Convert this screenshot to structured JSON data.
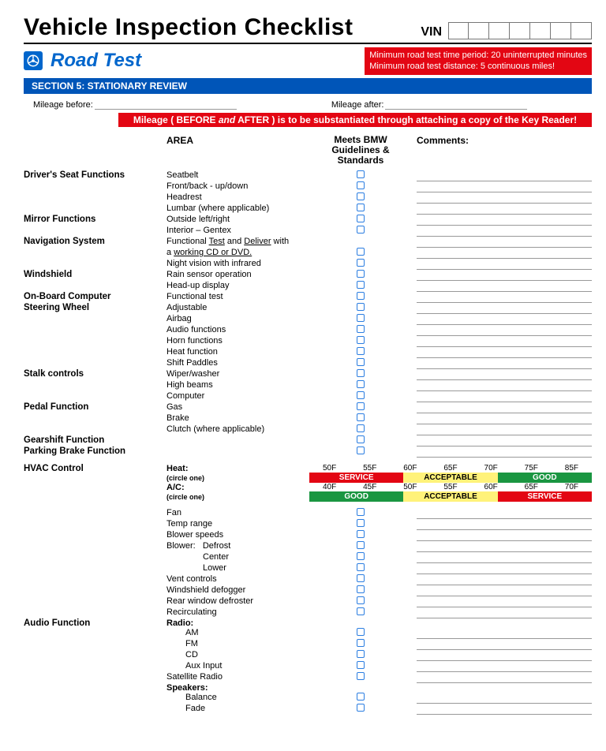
{
  "title": "Vehicle Inspection Checklist",
  "vin_label": "VIN",
  "vin_cells": 7,
  "road_test_title": "Road Test",
  "warning_line1": "Minimum road test time period: 20 uninterrupted minutes",
  "warning_line2": "Minimum road test distance: 5 continuous miles!",
  "section_bar": "SECTION 5: STATIONARY REVIEW",
  "mileage_before_label": "Mileage before:",
  "mileage_after_label": "Mileage after:",
  "red_strip_1": "Mileage ( BEFORE ",
  "red_strip_ital": "and",
  "red_strip_2": " AFTER ) is to be substantiated through attaching a copy of the Key Reader!",
  "col_area": "AREA",
  "col_meets_1": "Meets BMW",
  "col_meets_2": "Guidelines & Standards",
  "col_comments": "Comments:",
  "colors": {
    "blue_bar": "#0055b8",
    "accent_blue": "#0066cc",
    "red": "#e30613",
    "green": "#1a9641",
    "yellow": "#fff27a",
    "checkbox_border": "#2a7de1"
  },
  "groups": [
    {
      "label": "Driver's Seat Functions",
      "rows": [
        {
          "area": "Seatbelt"
        },
        {
          "area": "Front/back - up/down"
        },
        {
          "area": "Headrest"
        },
        {
          "area": "Lumbar (where applicable)"
        }
      ]
    },
    {
      "label": "Mirror Functions",
      "rows": [
        {
          "area": "Outside left/right"
        },
        {
          "area": "Interior – Gentex"
        }
      ]
    },
    {
      "label": "Navigation System",
      "rows": [
        {
          "area_html": "Functional <span class='under'>Test</span> and <span class='under'>Deliver</span> with",
          "nocheck": true
        },
        {
          "area_html": "a <span class='under'>working CD or DVD.</span>"
        },
        {
          "area": "Night vision with infrared"
        }
      ]
    },
    {
      "label": "Windshield",
      "rows": [
        {
          "area": "Rain sensor operation"
        },
        {
          "area": "Head-up display"
        }
      ]
    },
    {
      "label": "On-Board Computer",
      "rows": [
        {
          "area": "Functional test"
        }
      ]
    },
    {
      "label": "Steering Wheel",
      "rows": [
        {
          "area": "Adjustable"
        },
        {
          "area": "Airbag"
        },
        {
          "area": "Audio functions"
        },
        {
          "area": "Horn functions"
        },
        {
          "area": "Heat function"
        },
        {
          "area": "Shift Paddles"
        }
      ]
    },
    {
      "label": "Stalk controls",
      "rows": [
        {
          "area": "Wiper/washer"
        },
        {
          "area": "High beams"
        },
        {
          "area": "Computer"
        }
      ]
    },
    {
      "label": "Pedal Function",
      "rows": [
        {
          "area": "Gas"
        },
        {
          "area": "Brake"
        },
        {
          "area": "Clutch (where applicable)"
        }
      ]
    },
    {
      "label": "Gearshift Function",
      "rows": [
        {
          "area": ""
        }
      ]
    },
    {
      "label": "Parking Brake Function",
      "rows": [
        {
          "area": ""
        }
      ]
    }
  ],
  "hvac": {
    "group_label": "HVAC Control",
    "heat_label": "Heat:",
    "ac_label": "A/C:",
    "circle_one": "(circle one)",
    "heat_scale": [
      "50F",
      "55F",
      "60F",
      "65F",
      "70F",
      "75F",
      "85F"
    ],
    "heat_bars": [
      {
        "text": "SERVICE",
        "cls": "seg-service"
      },
      {
        "text": "ACCEPTABLE",
        "cls": "seg-accept"
      },
      {
        "text": "GOOD",
        "cls": "seg-good"
      }
    ],
    "ac_scale": [
      "40F",
      "45F",
      "50F",
      "55F",
      "60F",
      "65F",
      "70F"
    ],
    "ac_bars": [
      {
        "text": "GOOD",
        "cls": "seg-good"
      },
      {
        "text": "ACCEPTABLE",
        "cls": "seg-accept"
      },
      {
        "text": "SERVICE",
        "cls": "seg-service"
      }
    ],
    "rows": [
      {
        "area": "Fan"
      },
      {
        "area": "Temp range"
      },
      {
        "area": "Blower speeds"
      },
      {
        "area_html": "Blower:&nbsp;&nbsp;&nbsp;Defrost"
      },
      {
        "area_html": "<span class='sub'>Center</span>"
      },
      {
        "area_html": "<span class='sub'>Lower</span>"
      },
      {
        "area": "Vent controls"
      },
      {
        "area": "Windshield defogger"
      },
      {
        "area": "Rear window defroster"
      },
      {
        "area": "Recirculating"
      }
    ]
  },
  "audio": {
    "group_label": "Audio Function",
    "rows": [
      {
        "area_html": "<span class='bold'>Radio:</span>",
        "nocheck": true,
        "nocmt": true
      },
      {
        "area_html": "<span class='sub' style='padding-left:24px'>AM</span>"
      },
      {
        "area_html": "<span class='sub' style='padding-left:24px'>FM</span>"
      },
      {
        "area_html": "<span class='sub' style='padding-left:24px'>CD</span>"
      },
      {
        "area_html": "<span class='sub' style='padding-left:24px'>Aux Input</span>"
      },
      {
        "area": "Satellite Radio"
      },
      {
        "area_html": "<span class='bold'>Speakers:</span>",
        "nocheck": true,
        "nocmt": true
      },
      {
        "area_html": "<span class='sub' style='padding-left:24px'>Balance</span>"
      },
      {
        "area_html": "<span class='sub' style='padding-left:24px'>Fade</span>"
      }
    ]
  }
}
